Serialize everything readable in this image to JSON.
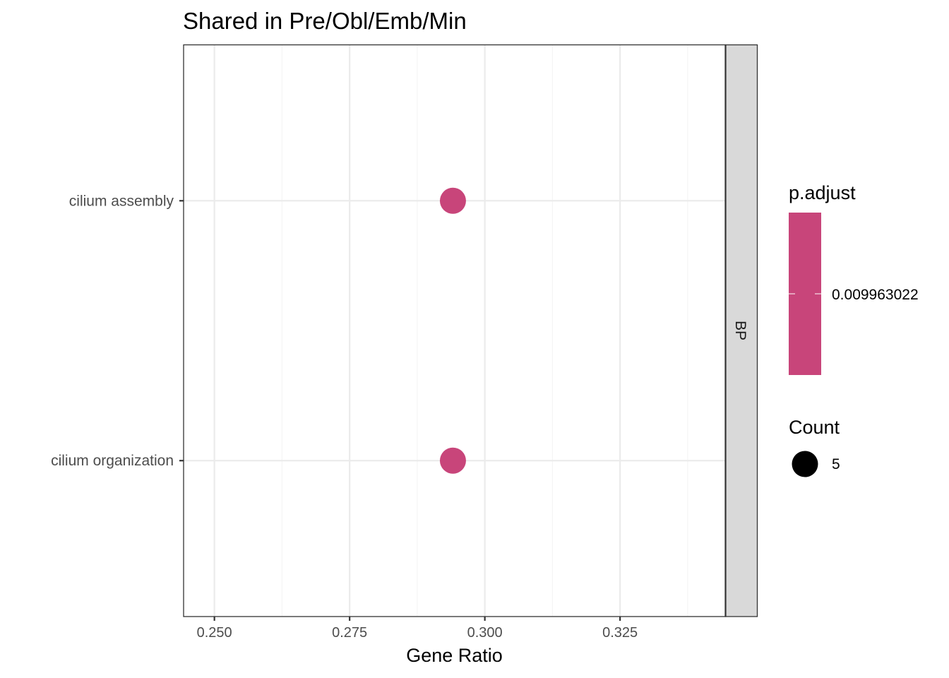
{
  "chart_data": {
    "type": "scatter",
    "title": "Shared in Pre/Obl/Emb/Min",
    "xlabel": "Gene Ratio",
    "ylabel": "",
    "xlim": [
      0.2443,
      0.3445
    ],
    "x_ticks": [
      0.25,
      0.275,
      0.3,
      0.325
    ],
    "x_tick_labels": [
      "0.250",
      "0.275",
      "0.300",
      "0.325"
    ],
    "categories": [
      "cilium assembly",
      "cilium organization"
    ],
    "points": [
      {
        "category": "cilium assembly",
        "x": 0.2941,
        "count": 5,
        "p_adjust": 0.009963022
      },
      {
        "category": "cilium organization",
        "x": 0.2941,
        "count": 5,
        "p_adjust": 0.009963022
      }
    ],
    "facet_label": "BP",
    "grid": true,
    "legend_position": "right",
    "legend": {
      "color_title": "p.adjust",
      "color_label": "0.009963022",
      "size_title": "Count",
      "size_label": "5"
    },
    "colors": {
      "point": "#c8457a",
      "colorbar": "#c8457a",
      "grid_major": "#ebebeb",
      "grid_minor": "#f5f5f5",
      "strip": "#d9d9d9",
      "size_key": "#000000"
    }
  }
}
